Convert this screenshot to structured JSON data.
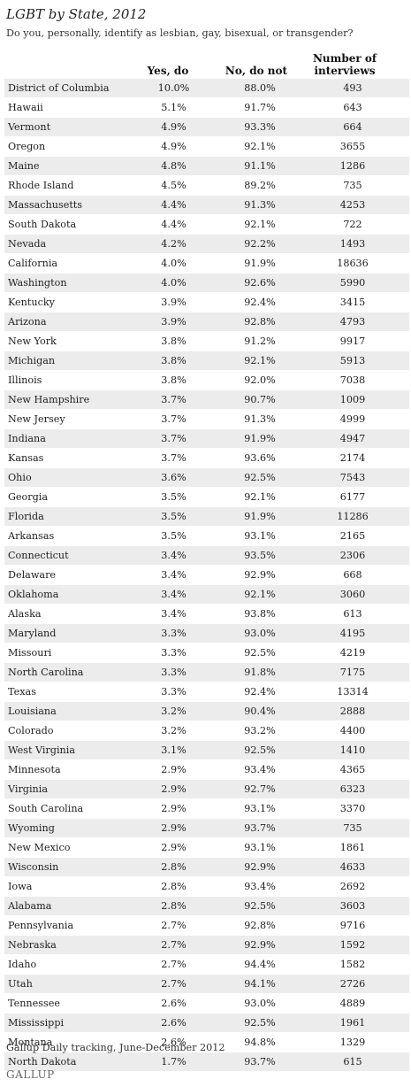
{
  "title": "LGBT by State, 2012",
  "subtitle": "Do you, personally, identify as lesbian, gay, bisexual, or transgender?",
  "columns": {
    "yes": "Yes, do",
    "no": "No, do not",
    "interviews_line1": "Number of",
    "interviews_line2": "interviews"
  },
  "rows": [
    {
      "state": "District of Columbia",
      "yes": "10.0%",
      "no": "88.0%",
      "n": "493"
    },
    {
      "state": "Hawaii",
      "yes": "5.1%",
      "no": "91.7%",
      "n": "643"
    },
    {
      "state": "Vermont",
      "yes": "4.9%",
      "no": "93.3%",
      "n": "664"
    },
    {
      "state": "Oregon",
      "yes": "4.9%",
      "no": "92.1%",
      "n": "3655"
    },
    {
      "state": "Maine",
      "yes": "4.8%",
      "no": "91.1%",
      "n": "1286"
    },
    {
      "state": "Rhode Island",
      "yes": "4.5%",
      "no": "89.2%",
      "n": "735"
    },
    {
      "state": "Massachusetts",
      "yes": "4.4%",
      "no": "91.3%",
      "n": "4253"
    },
    {
      "state": "South Dakota",
      "yes": "4.4%",
      "no": "92.1%",
      "n": "722"
    },
    {
      "state": "Nevada",
      "yes": "4.2%",
      "no": "92.2%",
      "n": "1493"
    },
    {
      "state": "California",
      "yes": "4.0%",
      "no": "91.9%",
      "n": "18636"
    },
    {
      "state": "Washington",
      "yes": "4.0%",
      "no": "92.6%",
      "n": "5990"
    },
    {
      "state": "Kentucky",
      "yes": "3.9%",
      "no": "92.4%",
      "n": "3415"
    },
    {
      "state": "Arizona",
      "yes": "3.9%",
      "no": "92.8%",
      "n": "4793"
    },
    {
      "state": "New York",
      "yes": "3.8%",
      "no": "91.2%",
      "n": "9917"
    },
    {
      "state": "Michigan",
      "yes": "3.8%",
      "no": "92.1%",
      "n": "5913"
    },
    {
      "state": "Illinois",
      "yes": "3.8%",
      "no": "92.0%",
      "n": "7038"
    },
    {
      "state": "New Hampshire",
      "yes": "3.7%",
      "no": "90.7%",
      "n": "1009"
    },
    {
      "state": "New Jersey",
      "yes": "3.7%",
      "no": "91.3%",
      "n": "4999"
    },
    {
      "state": "Indiana",
      "yes": "3.7%",
      "no": "91.9%",
      "n": "4947"
    },
    {
      "state": "Kansas",
      "yes": "3.7%",
      "no": "93.6%",
      "n": "2174"
    },
    {
      "state": "Ohio",
      "yes": "3.6%",
      "no": "92.5%",
      "n": "7543"
    },
    {
      "state": "Georgia",
      "yes": "3.5%",
      "no": "92.1%",
      "n": "6177"
    },
    {
      "state": "Florida",
      "yes": "3.5%",
      "no": "91.9%",
      "n": "11286"
    },
    {
      "state": "Arkansas",
      "yes": "3.5%",
      "no": "93.1%",
      "n": "2165"
    },
    {
      "state": "Connecticut",
      "yes": "3.4%",
      "no": "93.5%",
      "n": "2306"
    },
    {
      "state": "Delaware",
      "yes": "3.4%",
      "no": "92.9%",
      "n": "668"
    },
    {
      "state": "Oklahoma",
      "yes": "3.4%",
      "no": "92.1%",
      "n": "3060"
    },
    {
      "state": "Alaska",
      "yes": "3.4%",
      "no": "93.8%",
      "n": "613"
    },
    {
      "state": "Maryland",
      "yes": "3.3%",
      "no": "93.0%",
      "n": "4195"
    },
    {
      "state": "Missouri",
      "yes": "3.3%",
      "no": "92.5%",
      "n": "4219"
    },
    {
      "state": "North Carolina",
      "yes": "3.3%",
      "no": "91.8%",
      "n": "7175"
    },
    {
      "state": "Texas",
      "yes": "3.3%",
      "no": "92.4%",
      "n": "13314"
    },
    {
      "state": "Louisiana",
      "yes": "3.2%",
      "no": "90.4%",
      "n": "2888"
    },
    {
      "state": "Colorado",
      "yes": "3.2%",
      "no": "93.2%",
      "n": "4400"
    },
    {
      "state": "West Virginia",
      "yes": "3.1%",
      "no": "92.5%",
      "n": "1410"
    },
    {
      "state": "Minnesota",
      "yes": "2.9%",
      "no": "93.4%",
      "n": "4365"
    },
    {
      "state": "Virginia",
      "yes": "2.9%",
      "no": "92.7%",
      "n": "6323"
    },
    {
      "state": "South Carolina",
      "yes": "2.9%",
      "no": "93.1%",
      "n": "3370"
    },
    {
      "state": "Wyoming",
      "yes": "2.9%",
      "no": "93.7%",
      "n": "735"
    },
    {
      "state": "New Mexico",
      "yes": "2.9%",
      "no": "93.1%",
      "n": "1861"
    },
    {
      "state": "Wisconsin",
      "yes": "2.8%",
      "no": "92.9%",
      "n": "4633"
    },
    {
      "state": "Iowa",
      "yes": "2.8%",
      "no": "93.4%",
      "n": "2692"
    },
    {
      "state": "Alabama",
      "yes": "2.8%",
      "no": "92.5%",
      "n": "3603"
    },
    {
      "state": "Pennsylvania",
      "yes": "2.7%",
      "no": "92.8%",
      "n": "9716"
    },
    {
      "state": "Nebraska",
      "yes": "2.7%",
      "no": "92.9%",
      "n": "1592"
    },
    {
      "state": "Idaho",
      "yes": "2.7%",
      "no": "94.4%",
      "n": "1582"
    },
    {
      "state": "Utah",
      "yes": "2.7%",
      "no": "94.1%",
      "n": "2726"
    },
    {
      "state": "Tennessee",
      "yes": "2.6%",
      "no": "93.0%",
      "n": "4889"
    },
    {
      "state": "Mississippi",
      "yes": "2.6%",
      "no": "92.5%",
      "n": "1961"
    },
    {
      "state": "Montana",
      "yes": "2.6%",
      "no": "94.8%",
      "n": "1329"
    },
    {
      "state": "North Dakota",
      "yes": "1.7%",
      "no": "93.7%",
      "n": "615"
    }
  ],
  "source": "Gallup Daily tracking, June-December 2012",
  "logo": "GALLUP"
}
